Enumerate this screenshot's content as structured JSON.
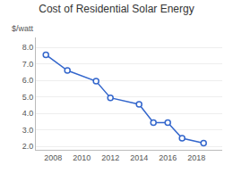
{
  "chart_data": {
    "type": "line",
    "title": "Cost of Residential Solar Energy",
    "ylabel": "$/watt",
    "x": [
      2007.5,
      2009,
      2011,
      2012,
      2014,
      2015,
      2016,
      2017,
      2018.5
    ],
    "values": [
      7.55,
      6.6,
      5.95,
      4.95,
      4.55,
      3.45,
      3.45,
      2.5,
      2.2
    ],
    "color": "#3366cc",
    "marker": "circle",
    "xlim": [
      2006.8,
      2019.8
    ],
    "xticks": [
      2008,
      2010,
      2012,
      2014,
      2016,
      2018
    ],
    "ylim": [
      1.8,
      8.6
    ],
    "yticks": [
      {
        "value": 2.0,
        "label": "2.0"
      },
      {
        "value": 3.0,
        "label": "3.0"
      },
      {
        "value": 4.0,
        "label": "4.0"
      },
      {
        "value": 5.0,
        "label": "5.0"
      },
      {
        "value": 6.0,
        "label": "6.0"
      },
      {
        "value": 7.0,
        "label": "7.0"
      },
      {
        "value": 8.0,
        "label": "8.0"
      }
    ],
    "grid": "y"
  }
}
